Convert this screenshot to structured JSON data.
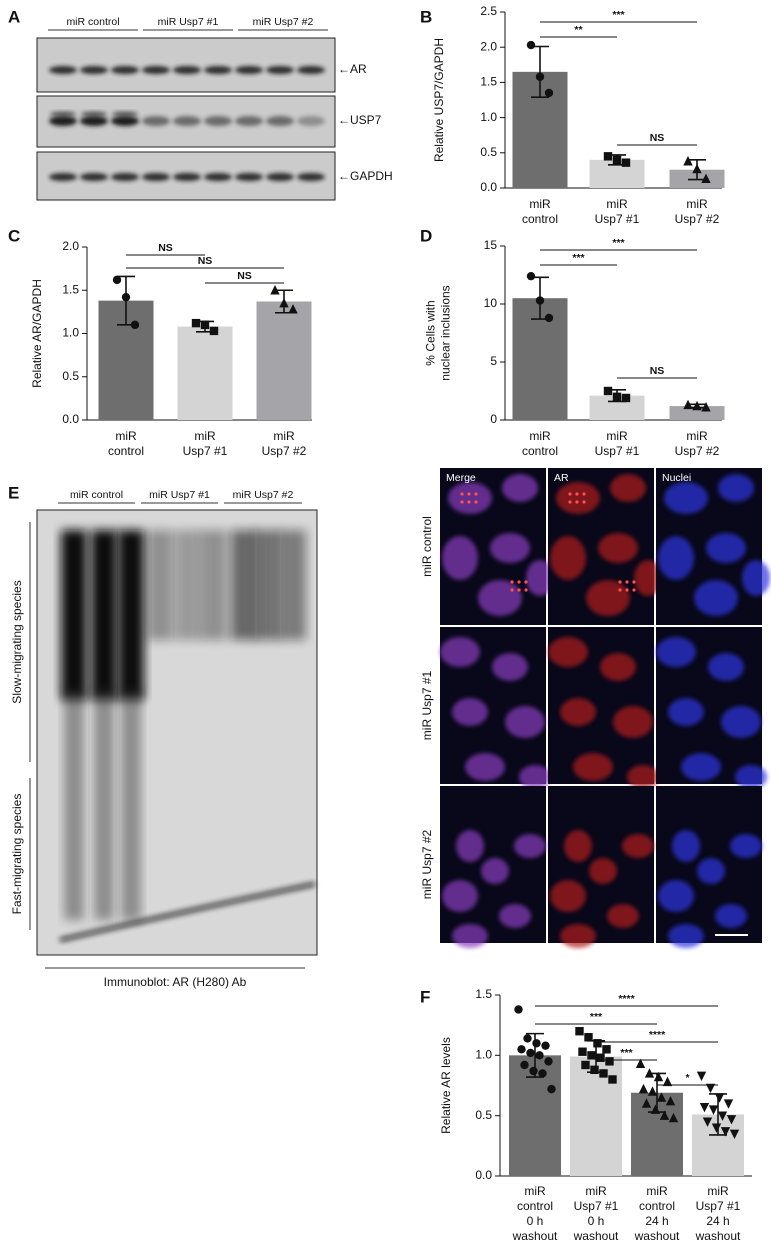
{
  "panel_labels": [
    "A",
    "B",
    "C",
    "D",
    "E",
    "F"
  ],
  "blot_a": {
    "lanes": [
      "miR control",
      "miR Usp7 #1",
      "miR Usp7 #2"
    ],
    "bands": [
      "←AR",
      "←USP7",
      "←GAPDH"
    ]
  },
  "blot_e": {
    "lanes": [
      "miR control",
      "miR Usp7 #1",
      "miR Usp7 #2"
    ],
    "regions": [
      "Slow-migrating species",
      "Fast-migrating species"
    ],
    "caption": "Immunoblot: AR (H280) Ab"
  },
  "micrographs": {
    "columns": [
      "Merge",
      "AR",
      "Nuclei"
    ],
    "rows": [
      "miR control",
      "miR Usp7 #1",
      "miR Usp7 #2"
    ]
  },
  "chart_data": [
    {
      "type": "bar",
      "ylabel": [
        "Relative USP7/GAPDH"
      ],
      "categories": [
        [
          "miR",
          "control"
        ],
        [
          "miR",
          "Usp7 #1"
        ],
        [
          "miR",
          "Usp7 #2"
        ]
      ],
      "values": [
        1.65,
        0.4,
        0.26
      ],
      "errors": [
        0.36,
        0.07,
        0.14
      ],
      "points": [
        [
          2.03,
          1.58,
          1.35
        ],
        [
          0.45,
          0.4,
          0.36
        ],
        [
          0.38,
          0.27,
          0.13
        ]
      ],
      "colors": [
        "#6e6e6e",
        "#d4d4d4",
        "#a4a4a9"
      ],
      "markers": [
        "circle",
        "square",
        "triangle"
      ],
      "ylim": [
        0,
        2.5
      ],
      "yticks": [
        {
          "value": 0,
          "label": "0.0"
        },
        0.5,
        {
          "value": 1,
          "label": "1.0"
        },
        1.5,
        {
          "value": 2,
          "label": "2.0"
        },
        2.5
      ],
      "comparisons": [
        {
          "pair": [
            0,
            1
          ],
          "label": "**"
        },
        {
          "pair": [
            0,
            2
          ],
          "label": "***"
        },
        {
          "pair": [
            1,
            2
          ],
          "label": "NS"
        }
      ]
    },
    {
      "type": "bar",
      "ylabel": [
        "Relative AR/GAPDH"
      ],
      "categories": [
        [
          "miR",
          "control"
        ],
        [
          "miR",
          "Usp7 #1"
        ],
        [
          "miR",
          "Usp7 #2"
        ]
      ],
      "values": [
        1.38,
        1.08,
        1.37
      ],
      "errors": [
        0.28,
        0.06,
        0.13
      ],
      "points": [
        [
          1.62,
          1.42,
          1.1
        ],
        [
          1.12,
          1.1,
          1.03
        ],
        [
          1.5,
          1.35,
          1.28
        ]
      ],
      "colors": [
        "#6e6e6e",
        "#d4d4d4",
        "#a4a4a9"
      ],
      "markers": [
        "circle",
        "square",
        "triangle"
      ],
      "ylim": [
        0,
        2
      ],
      "yticks": [
        {
          "value": 0,
          "label": "0.0"
        },
        0.5,
        {
          "value": 1,
          "label": "1.0"
        },
        1.5,
        {
          "value": 2,
          "label": "2.0"
        }
      ],
      "comparisons": [
        {
          "pair": [
            0,
            2
          ],
          "label": "NS"
        },
        {
          "pair": [
            0,
            1
          ],
          "label": "NS"
        },
        {
          "pair": [
            1,
            2
          ],
          "label": "NS"
        }
      ]
    },
    {
      "type": "bar",
      "ylabel": [
        "% Cells with",
        "nuclear inclusions"
      ],
      "categories": [
        [
          "miR",
          "control"
        ],
        [
          "miR",
          "Usp7 #1"
        ],
        [
          "miR",
          "Usp7 #2"
        ]
      ],
      "values": [
        10.5,
        2.1,
        1.2
      ],
      "errors": [
        1.8,
        0.5,
        0.15
      ],
      "points": [
        [
          12.4,
          10.3,
          8.8
        ],
        [
          2.5,
          2.0,
          1.9
        ],
        [
          1.3,
          1.2,
          1.1
        ]
      ],
      "colors": [
        "#6e6e6e",
        "#d4d4d4",
        "#a4a4a9"
      ],
      "markers": [
        "circle",
        "square",
        "triangle"
      ],
      "ylim": [
        0,
        15
      ],
      "yticks": [
        0,
        5,
        10,
        15
      ],
      "comparisons": [
        {
          "pair": [
            0,
            1
          ],
          "label": "***"
        },
        {
          "pair": [
            0,
            2
          ],
          "label": "***"
        },
        {
          "pair": [
            1,
            2
          ],
          "label": "NS"
        }
      ]
    },
    {
      "type": "bar",
      "ylabel": [
        "Relative AR levels"
      ],
      "categories": [
        [
          "miR",
          "control",
          "0 h",
          "washout"
        ],
        [
          "miR",
          "Usp7 #1",
          "0 h",
          "washout"
        ],
        [
          "miR",
          "control",
          "24 h",
          "washout"
        ],
        [
          "miR",
          "Usp7 #1",
          "24 h",
          "washout"
        ]
      ],
      "values": [
        1.0,
        0.99,
        0.69,
        0.51
      ],
      "errors": [
        0.18,
        0.13,
        0.16,
        0.17
      ],
      "points": [
        [
          1.38,
          1.14,
          1.1,
          1.08,
          1.05,
          1.02,
          1.0,
          0.95,
          0.92,
          0.87,
          0.85,
          0.72
        ],
        [
          1.2,
          1.15,
          1.1,
          1.05,
          1.03,
          1.0,
          0.98,
          0.95,
          0.92,
          0.88,
          0.85,
          0.8
        ],
        [
          0.93,
          0.85,
          0.82,
          0.78,
          0.72,
          0.7,
          0.65,
          0.62,
          0.6,
          0.55,
          0.5,
          0.48
        ],
        [
          0.83,
          0.73,
          0.65,
          0.6,
          0.57,
          0.55,
          0.5,
          0.47,
          0.45,
          0.4,
          0.37,
          0.35
        ]
      ],
      "colors": [
        "#6e6e6e",
        "#d4d4d4",
        "#6e6e6e",
        "#d4d4d4"
      ],
      "markers": [
        "circle",
        "square",
        "triangle",
        "triangle-down"
      ],
      "ylim": [
        0,
        1.5
      ],
      "yticks": [
        {
          "value": 0,
          "label": "0.0"
        },
        0.5,
        {
          "value": 1,
          "label": "1.0"
        },
        1.5
      ],
      "comparisons": [
        {
          "pair": [
            0,
            3
          ],
          "label": "****"
        },
        {
          "pair": [
            0,
            2
          ],
          "label": "***"
        },
        {
          "pair": [
            1,
            3
          ],
          "label": "****"
        },
        {
          "pair": [
            1,
            2
          ],
          "label": "***"
        },
        {
          "pair": [
            2,
            3
          ],
          "label": "*"
        }
      ]
    }
  ]
}
